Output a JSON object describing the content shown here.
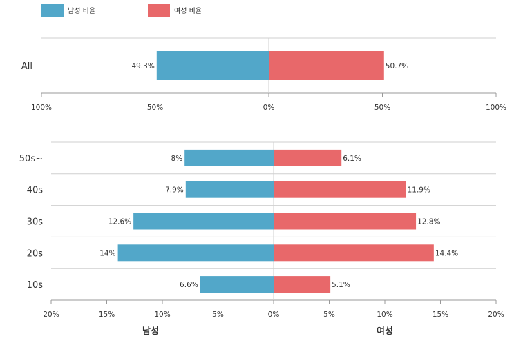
{
  "legend": {
    "male_label": "남성 비율",
    "female_label": "여성 비율"
  },
  "colors": {
    "male": "#52a7c9",
    "female": "#e8686a",
    "grid": "#cfcfcf",
    "axis": "#999999"
  },
  "chart_data": [
    {
      "type": "bar",
      "orientation": "horizontal-diverging",
      "categories": [
        "All"
      ],
      "series": [
        {
          "name": "남성 비율",
          "values": [
            49.3
          ]
        },
        {
          "name": "여성 비율",
          "values": [
            50.7
          ]
        }
      ],
      "value_labels": {
        "male": [
          "49.3%"
        ],
        "female": [
          "50.7%"
        ]
      },
      "xlim": [
        -100,
        100
      ],
      "tick_labels": [
        "100%",
        "50%",
        "0%",
        "50%",
        "100%"
      ],
      "legend_position": "top-left"
    },
    {
      "type": "bar",
      "orientation": "horizontal-diverging",
      "categories": [
        "50s~",
        "40s",
        "30s",
        "20s",
        "10s"
      ],
      "series": [
        {
          "name": "남성 비율",
          "values": [
            8,
            7.9,
            12.6,
            14,
            6.6
          ]
        },
        {
          "name": "여성 비율",
          "values": [
            6.1,
            11.9,
            12.8,
            14.4,
            5.1
          ]
        }
      ],
      "value_labels": {
        "male": [
          "8%",
          "7.9%",
          "12.6%",
          "14%",
          "6.6%"
        ],
        "female": [
          "6.1%",
          "11.9%",
          "12.8%",
          "14.4%",
          "5.1%"
        ]
      },
      "xlim": [
        -20,
        20
      ],
      "tick_labels": [
        "20%",
        "15%",
        "10%",
        "5%",
        "0%",
        "5%",
        "10%",
        "15%",
        "20%"
      ],
      "xlabel_left": "남성",
      "xlabel_right": "여성"
    }
  ]
}
